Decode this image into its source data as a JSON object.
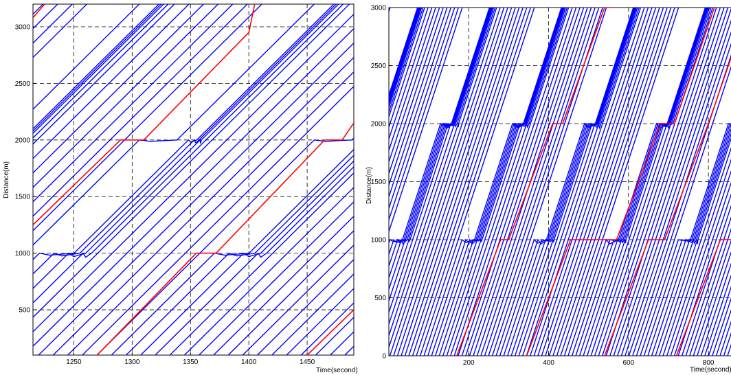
{
  "chart_data": [
    {
      "type": "line",
      "title": "",
      "xlabel": "Time(second)",
      "ylabel": "Distance(m)",
      "xlim": [
        1215,
        1490
      ],
      "ylim": [
        100,
        3200
      ],
      "xticks": [
        1250,
        1300,
        1350,
        1400,
        1450
      ],
      "yticks": [
        500,
        1000,
        1500,
        2000,
        2500,
        3000
      ],
      "grid": "dashed",
      "series": [
        {
          "color": "#0000ff",
          "description": "blue vehicle trajectories (many parallel lines, pausing near 1000 m and 2000 m)"
        },
        {
          "color": "#ff0000",
          "description": "red highlighted vehicle trajectories"
        }
      ],
      "red_trajectories": [
        {
          "x": [
            1215,
            1290,
            1310,
            1400,
            1405
          ],
          "y": [
            1250,
            2000,
            2000,
            2950,
            3200
          ]
        },
        {
          "x": [
            1270,
            1355,
            1372,
            1465,
            1480,
            1490
          ],
          "y": [
            100,
            1000,
            1000,
            2000,
            2000,
            2150
          ]
        },
        {
          "x": [
            1450,
            1490
          ],
          "y": [
            100,
            500
          ]
        },
        {
          "x": [
            1215,
            1225
          ],
          "y": [
            3080,
            3200
          ]
        }
      ]
    },
    {
      "type": "line",
      "title": "",
      "xlabel": "Time(second)",
      "ylabel": "Distance(m)",
      "xlim": [
        0,
        860
      ],
      "ylim": [
        0,
        3000
      ],
      "xticks": [
        200,
        400,
        600,
        800
      ],
      "yticks": [
        0,
        500,
        1000,
        1500,
        2000,
        2500,
        3000
      ],
      "grid": "dashed",
      "series": [
        {
          "color": "#0000ff",
          "description": "blue vehicle trajectories (many parallel lines, pausing near 1000 m and 2000 m)"
        },
        {
          "color": "#ff0000",
          "description": "red highlighted vehicle trajectories"
        }
      ],
      "red_trajectories": [
        {
          "x": [
            170,
            280,
            300,
            410,
            435,
            540,
            560
          ],
          "y": [
            0,
            1000,
            1000,
            2000,
            2000,
            3000,
            3000
          ]
        },
        {
          "x": [
            345,
            455,
            570,
            680,
            715,
            815
          ],
          "y": [
            0,
            1000,
            1000,
            2000,
            2000,
            3000
          ]
        },
        {
          "x": [
            540,
            650,
            690,
            800,
            860
          ],
          "y": [
            0,
            1000,
            1000,
            2000,
            2600
          ]
        },
        {
          "x": [
            720,
            830,
            860
          ],
          "y": [
            0,
            1000,
            1000
          ]
        }
      ]
    }
  ]
}
